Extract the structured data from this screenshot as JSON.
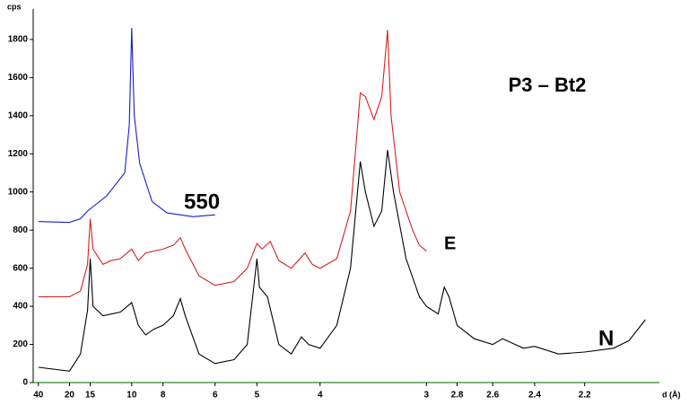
{
  "chart_data": {
    "type": "line",
    "title": "P3 – Bt2",
    "y_label": "cps",
    "x_label": "d (Å)",
    "xscale": "bragg",
    "xlim": [
      48,
      1.98
    ],
    "ylim": [
      0,
      1960
    ],
    "xticks": [
      40,
      20,
      15,
      10,
      8,
      6,
      5,
      4,
      3,
      2.8,
      2.6,
      2.4,
      2.2
    ],
    "yticks": [
      0,
      200,
      400,
      600,
      800,
      1000,
      1200,
      1400,
      1600,
      1800
    ],
    "series": [
      {
        "name": "550",
        "color": "#1a1acc",
        "x": [
          40,
          20,
          17,
          15.5,
          12.5,
          10.6,
          10.2,
          10,
          9.8,
          9.4,
          8.6,
          7.8,
          6.7,
          6
        ],
        "values": [
          845,
          840,
          860,
          900,
          980,
          1100,
          1350,
          1860,
          1400,
          1150,
          950,
          890,
          870,
          880
        ]
      },
      {
        "name": "E",
        "color": "#d42020",
        "x": [
          40,
          20,
          17,
          15.5,
          15,
          14.5,
          13,
          12,
          11,
          10,
          9.5,
          9,
          8.5,
          8,
          7.5,
          7.2,
          7,
          6.5,
          6,
          5.5,
          5.2,
          5,
          4.9,
          4.75,
          4.6,
          4.4,
          4.2,
          4.1,
          4,
          3.8,
          3.65,
          3.55,
          3.5,
          3.42,
          3.35,
          3.3,
          3.27,
          3.2,
          3.1,
          3.05,
          3
        ],
        "values": [
          450,
          450,
          480,
          620,
          860,
          700,
          620,
          640,
          650,
          700,
          640,
          680,
          690,
          700,
          720,
          760,
          700,
          560,
          510,
          530,
          600,
          730,
          700,
          740,
          640,
          600,
          680,
          620,
          600,
          650,
          900,
          1520,
          1500,
          1380,
          1500,
          1850,
          1400,
          1000,
          800,
          720,
          690
        ]
      },
      {
        "name": "N",
        "color": "#000000",
        "x": [
          40,
          20,
          17,
          15.5,
          15,
          14.5,
          13,
          11,
          10,
          9.5,
          9,
          8.5,
          8,
          7.5,
          7.2,
          7,
          6.5,
          6,
          5.5,
          5.2,
          5,
          4.95,
          4.8,
          4.6,
          4.4,
          4.25,
          4.15,
          4,
          3.8,
          3.65,
          3.55,
          3.5,
          3.42,
          3.35,
          3.3,
          3.25,
          3.15,
          3.05,
          3,
          2.92,
          2.88,
          2.85,
          2.8,
          2.7,
          2.6,
          2.55,
          2.45,
          2.4,
          2.3,
          2.2,
          2.1,
          2.05,
          2
        ],
        "values": [
          80,
          60,
          150,
          380,
          650,
          400,
          350,
          370,
          420,
          300,
          250,
          280,
          300,
          350,
          440,
          350,
          150,
          100,
          120,
          200,
          650,
          500,
          450,
          200,
          150,
          240,
          200,
          180,
          300,
          600,
          1160,
          1000,
          820,
          900,
          1220,
          1000,
          650,
          450,
          400,
          360,
          500,
          450,
          300,
          230,
          200,
          230,
          180,
          190,
          150,
          160,
          180,
          220,
          330
        ]
      }
    ]
  }
}
